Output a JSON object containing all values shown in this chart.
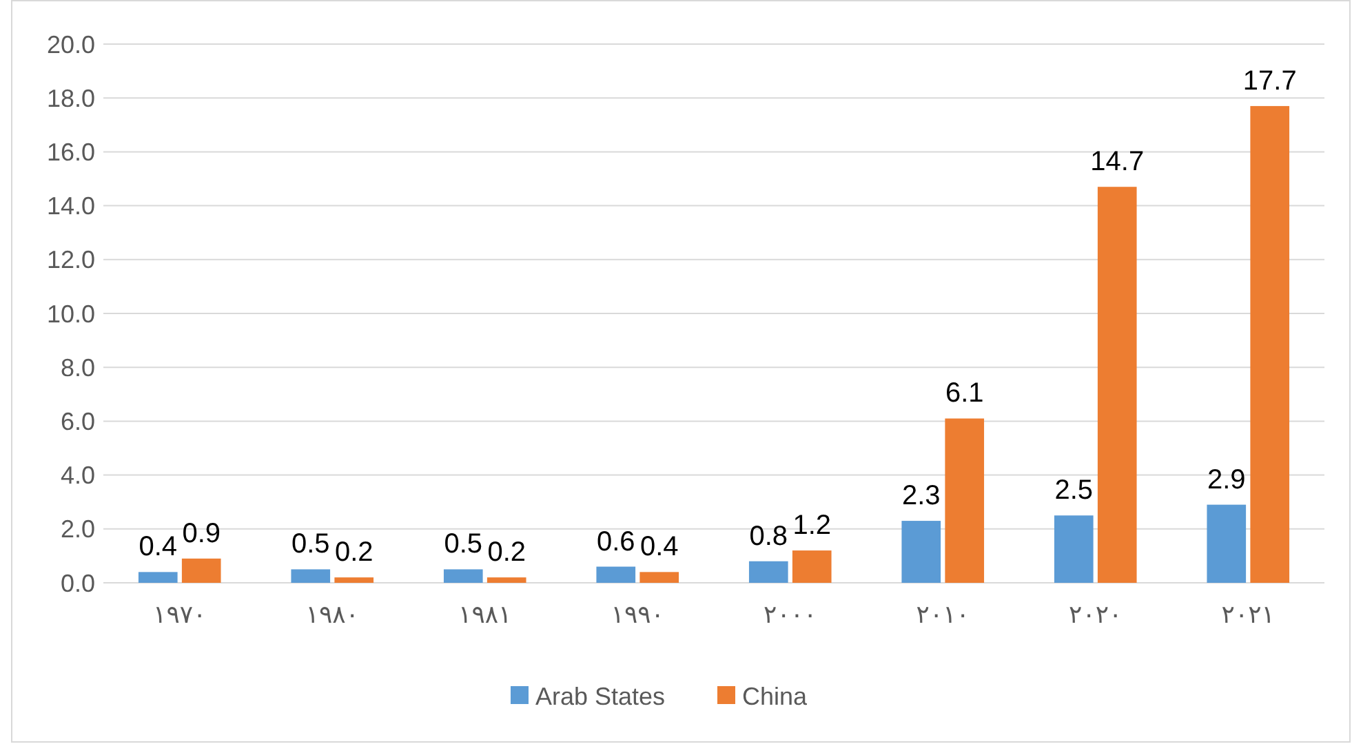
{
  "chart_data": {
    "type": "bar",
    "categories": [
      "١٩٧٠",
      "١٩٨٠",
      "١٩٨١",
      "١٩٩٠",
      "٢٠٠٠",
      "٢٠١٠",
      "٢٠٢٠",
      "٢٠٢١"
    ],
    "series": [
      {
        "name": "Arab States",
        "color": "#5b9bd5",
        "values": [
          0.4,
          0.5,
          0.5,
          0.6,
          0.8,
          2.3,
          2.5,
          2.9
        ]
      },
      {
        "name": "China",
        "color": "#ed7d31",
        "values": [
          0.9,
          0.2,
          0.2,
          0.4,
          1.2,
          6.1,
          14.7,
          17.7
        ]
      }
    ],
    "ylim": [
      0,
      20
    ],
    "yticks": [
      {
        "value": 0,
        "label": "0.0"
      },
      {
        "value": 2,
        "label": "2.0"
      },
      {
        "value": 4,
        "label": "4.0"
      },
      {
        "value": 6,
        "label": "6.0"
      },
      {
        "value": 8,
        "label": "8.0"
      },
      {
        "value": 10,
        "label": "10.0"
      },
      {
        "value": 12,
        "label": "12.0"
      },
      {
        "value": 14,
        "label": "14.0"
      },
      {
        "value": 16,
        "label": "16.0"
      },
      {
        "value": 18,
        "label": "18.0"
      },
      {
        "value": 20,
        "label": "20.0"
      }
    ],
    "grid": "y",
    "legend": "bottom",
    "data_labels": true
  }
}
